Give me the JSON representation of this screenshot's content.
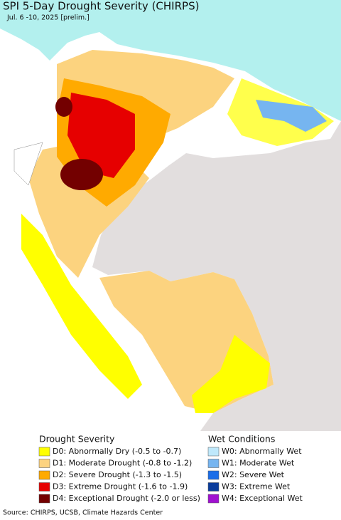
{
  "title": "SPI 5-Day Drought Severity (CHIRPS)",
  "subtitle": "Jul. 6 -10, 2025 [prelim.]",
  "legend": {
    "drought": {
      "title": "Drought Severity",
      "items": [
        {
          "label": "D0: Abnormally Dry (-0.5 to -0.7)",
          "color": "#ffff00"
        },
        {
          "label": "D1: Moderate Drought (-0.8 to -1.2)",
          "color": "#fcd37f"
        },
        {
          "label": "D2: Severe Drought (-1.3 to -1.5)",
          "color": "#ffaa00"
        },
        {
          "label": "D3: Extreme Drought (-1.6 to -1.9)",
          "color": "#e60000"
        },
        {
          "label": "D4: Exceptional Drought (-2.0 or less)",
          "color": "#730000"
        }
      ]
    },
    "wet": {
      "title": "Wet Conditions",
      "items": [
        {
          "label": "W0: Abnormally Wet",
          "color": "#bfe8fb"
        },
        {
          "label": "W1: Moderate Wet",
          "color": "#76b5f0"
        },
        {
          "label": "W2: Severe Wet",
          "color": "#1c6ee8"
        },
        {
          "label": "W3: Extreme Wet",
          "color": "#0a3c9c"
        },
        {
          "label": "W4: Exceptional Wet",
          "color": "#a010d0"
        }
      ]
    }
  },
  "source": "Source: CHIRPS, UCSB, Climate Hazards Center"
}
